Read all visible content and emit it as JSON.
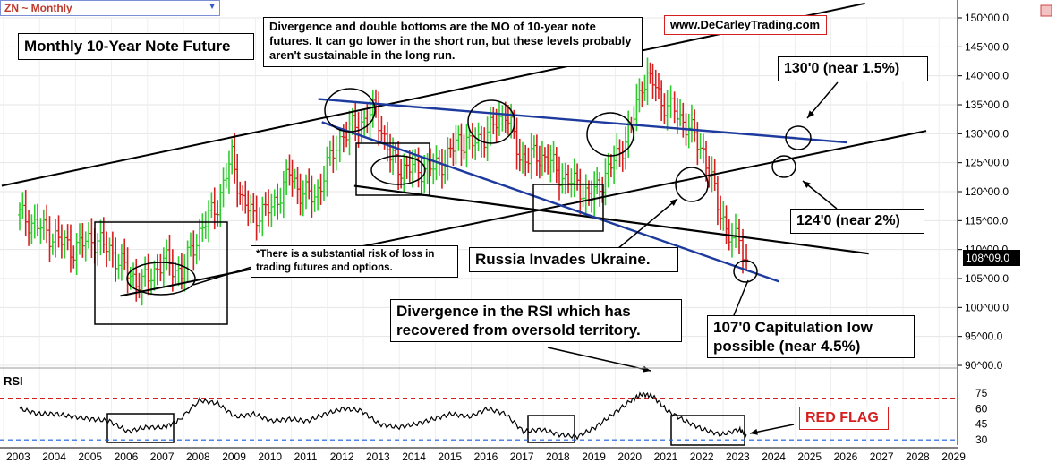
{
  "header": {
    "symbol_label": "ZN ~ Monthly"
  },
  "annotations": {
    "title": "Monthly 10-Year Note Future",
    "divergence_note": "Divergence and double bottoms are the MO of 10-year note futures. It can go lower in the short run, but these levels probably aren't sustainable in the long run.",
    "website": "www.DeCarleyTrading.com",
    "label_130": "130'0 (near 1.5%)",
    "label_124": "124'0 (near 2%)",
    "risk": "*There is a substantial risk of loss in trading futures and options.",
    "russia": "Russia Invades Ukraine.",
    "rsi_note": "Divergence in the RSI which has recovered from oversold territory.",
    "capitulation": "107'0 Capitulation low possible (near 4.5%)",
    "red_flag": "RED FLAG",
    "rsi_label": "RSI",
    "current_price": "108^09.0"
  },
  "colors": {
    "up": "#2ecc2e",
    "down": "#d62020",
    "trend_blue": "#1d3a9e",
    "rsi_line": "#000000",
    "rsi_upper": "#d62020",
    "rsi_lower": "#1a5be0"
  },
  "chart_data": [
    {
      "type": "line",
      "x_ticks": [
        "2003",
        "2004",
        "2005",
        "2006",
        "2007",
        "2008",
        "2009",
        "2010",
        "2011",
        "2012",
        "2013",
        "2014",
        "2015",
        "2016",
        "2017",
        "2018",
        "2019",
        "2020",
        "2021",
        "2022",
        "2023",
        "2024",
        "2025",
        "2026",
        "2027",
        "2028",
        "2029"
      ],
      "y_ticks": [
        "90^00.0",
        "95^00.0",
        "100^00.0",
        "105^00.0",
        "110^00.0",
        "115^00.0",
        "120^00.0",
        "125^00.0",
        "130^00.0",
        "135^00.0",
        "140^00.0",
        "145^00.0",
        "150^00.0"
      ],
      "ylim": [
        90,
        150
      ],
      "xlim": [
        2003,
        2029
      ],
      "series": [
        {
          "x": [
            2003.0,
            2003.5,
            2004.0,
            2004.5,
            2005.0,
            2005.5,
            2006.0,
            2006.4,
            2007.0,
            2007.5,
            2008.0,
            2008.5,
            2008.9,
            2009.2,
            2009.5,
            2010.0,
            2010.5,
            2010.8,
            2011.2,
            2011.8,
            2012.0,
            2012.5,
            2012.9,
            2013.3,
            2013.6,
            2014.0,
            2014.5,
            2014.9,
            2015.2,
            2015.5,
            2016.0,
            2016.5,
            2016.9,
            2017.3,
            2017.6,
            2018.0,
            2018.5,
            2018.9,
            2019.2,
            2019.6,
            2020.0,
            2020.3,
            2020.6,
            2021.0,
            2021.2,
            2021.6,
            2022.0,
            2022.4,
            2022.8,
            2023.0,
            2023.2
          ],
          "values": [
            116,
            114,
            112,
            110,
            112,
            110,
            106,
            104,
            108,
            106,
            113,
            118,
            126,
            118,
            116,
            117,
            123,
            120,
            119,
            128,
            130,
            132,
            134,
            126,
            124,
            124,
            124,
            126,
            129,
            128,
            130,
            134,
            126,
            126,
            126,
            123,
            121,
            119,
            122,
            126,
            131,
            139,
            139,
            134,
            134,
            131,
            127,
            118,
            111,
            112,
            108.3
          ]
        }
      ]
    },
    {
      "type": "line",
      "y_ticks": [
        "30",
        "45",
        "60",
        "75"
      ],
      "ylim": [
        25,
        80
      ],
      "series": [
        {
          "x": [
            2003.0,
            2003.5,
            2004.0,
            2004.5,
            2005.0,
            2005.5,
            2006.0,
            2006.5,
            2007.0,
            2007.4,
            2008.0,
            2008.5,
            2009.0,
            2009.5,
            2010.0,
            2010.5,
            2011.0,
            2011.5,
            2012.0,
            2012.5,
            2013.0,
            2013.5,
            2014.0,
            2014.5,
            2015.0,
            2015.5,
            2016.0,
            2016.5,
            2017.0,
            2017.5,
            2018.0,
            2018.5,
            2019.0,
            2019.5,
            2020.0,
            2020.3,
            2020.6,
            2021.0,
            2021.5,
            2022.0,
            2022.5,
            2023.0,
            2023.2
          ],
          "values": [
            60,
            55,
            55,
            52,
            50,
            48,
            38,
            42,
            42,
            48,
            68,
            65,
            52,
            55,
            48,
            50,
            48,
            55,
            60,
            58,
            45,
            42,
            45,
            50,
            55,
            52,
            60,
            55,
            38,
            40,
            35,
            33,
            42,
            55,
            68,
            74,
            72,
            58,
            48,
            40,
            35,
            40,
            35
          ]
        }
      ]
    }
  ]
}
